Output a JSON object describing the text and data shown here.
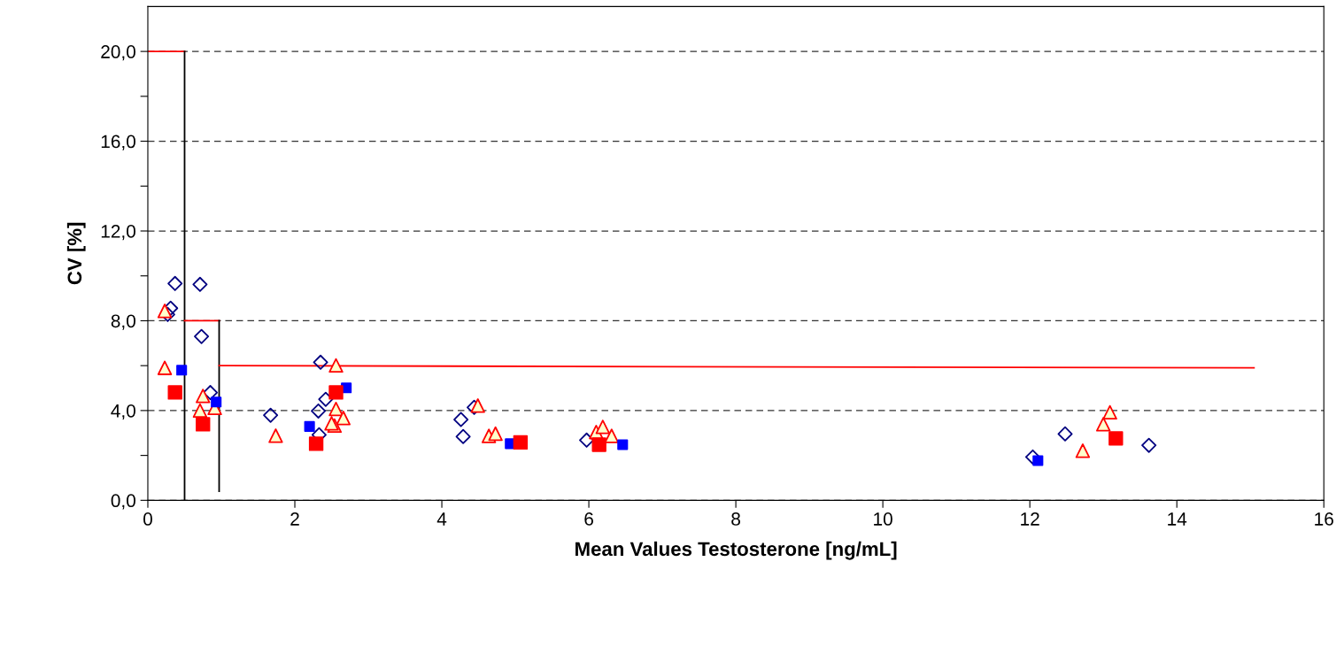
{
  "chart_data": {
    "type": "scatter",
    "xlabel": "Mean Values Testosterone [ng/mL]",
    "ylabel": "CV [%]",
    "xlim": [
      0,
      16
    ],
    "ylim": [
      0,
      22
    ],
    "xticks": [
      0,
      2,
      4,
      6,
      8,
      10,
      12,
      14,
      16
    ],
    "yticks": [
      {
        "value": 0,
        "label": "0,0"
      },
      {
        "value": 2,
        "label": null
      },
      {
        "value": 4,
        "label": "4,0"
      },
      {
        "value": 6,
        "label": null
      },
      {
        "value": 8,
        "label": "8,0"
      },
      {
        "value": 10,
        "label": null
      },
      {
        "value": 12,
        "label": "12,0"
      },
      {
        "value": 14,
        "label": null
      },
      {
        "value": 16,
        "label": "16,0"
      },
      {
        "value": 18,
        "label": null
      },
      {
        "value": 20,
        "label": "20,0"
      }
    ],
    "grid": "y",
    "legend": false,
    "series": [
      {
        "marker": "diamond",
        "color": "#000080",
        "x": [
          0.37,
          0.71,
          0.31,
          0.27,
          0.73,
          0.85,
          1.67,
          2.35,
          2.42,
          2.32,
          2.33,
          2.51,
          4.26,
          4.29,
          4.44,
          5.97,
          6.27,
          12.04,
          12.48,
          13.62
        ],
        "values": [
          9.66,
          9.62,
          8.56,
          8.28,
          7.3,
          4.8,
          3.79,
          6.15,
          4.5,
          3.98,
          2.92,
          null,
          3.6,
          2.84,
          4.14,
          2.68,
          null,
          1.93,
          2.96,
          2.45
        ]
      },
      {
        "marker": "triangle",
        "color": "#ff0000",
        "x": [
          0.23,
          0.23,
          0.75,
          0.71,
          0.91,
          2.56,
          2.56,
          2.66,
          2.54,
          2.5,
          1.74,
          4.49,
          4.64,
          4.73,
          6.1,
          6.19,
          6.31,
          13.09,
          13.0,
          12.72
        ],
        "values": [
          8.44,
          5.9,
          4.65,
          4.0,
          4.12,
          6.01,
          4.07,
          3.67,
          3.33,
          3.43,
          2.88,
          4.22,
          2.87,
          2.97,
          3.04,
          3.27,
          2.87,
          3.92,
          3.39,
          2.21
        ]
      },
      {
        "marker": "square",
        "color": "#0000ff",
        "x": [
          0.46,
          0.93,
          2.2,
          2.7,
          4.93,
          6.46,
          12.11
        ],
        "values": [
          5.8,
          4.38,
          3.29,
          5.01,
          2.52,
          2.48,
          1.77
        ]
      },
      {
        "marker": "square",
        "color": "#ff0000",
        "x": [
          0.37,
          0.75,
          2.56,
          2.29,
          5.07,
          6.14,
          13.17
        ],
        "values": [
          4.81,
          3.39,
          4.81,
          2.52,
          2.58,
          2.48,
          2.76
        ]
      },
      {
        "type": "line",
        "color": "#ff0000",
        "x": [
          0,
          0.5
        ],
        "values": [
          20,
          20
        ]
      },
      {
        "type": "line",
        "color": "#000000",
        "x": [
          0.5,
          0.5
        ],
        "values": [
          20,
          0
        ]
      },
      {
        "type": "line",
        "color": "#ff0000",
        "x": [
          0.5,
          0.97
        ],
        "values": [
          8,
          8
        ]
      },
      {
        "type": "line",
        "color": "#000000",
        "x": [
          0.97,
          0.97
        ],
        "values": [
          8,
          0.4
        ]
      },
      {
        "type": "line",
        "color": "#ff0000",
        "x": [
          0.97,
          15.05
        ],
        "values": [
          6,
          5.9
        ]
      }
    ]
  }
}
